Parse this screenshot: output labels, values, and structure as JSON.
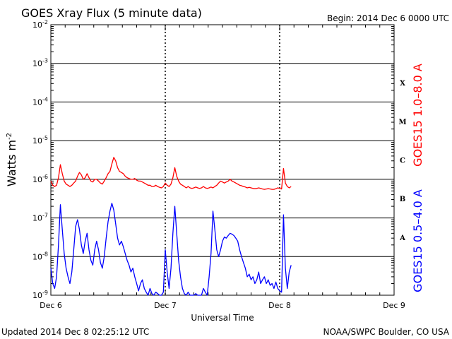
{
  "chart_data": {
    "type": "line",
    "title": "GOES Xray Flux (5 minute data)",
    "begin_label": "Begin:  2014 Dec 6 0000 UTC",
    "ylabel_main": "Watts m",
    "ylabel_sup": "-2",
    "xlabel": "Universal Time",
    "updated": "Updated 2014 Dec  8 02:25:12 UTC",
    "credit": "NOAA/SWPC Boulder, CO USA",
    "yscale": "log",
    "ylim": [
      1e-09,
      0.01
    ],
    "xlim": [
      0,
      72
    ],
    "x_unit": "hours since 2014 Dec 6 0000 UTC",
    "y_ticks": [
      {
        "v": 0.01,
        "base": "10",
        "exp": "-2"
      },
      {
        "v": 0.001,
        "base": "10",
        "exp": "-3"
      },
      {
        "v": 0.0001,
        "base": "10",
        "exp": "-4"
      },
      {
        "v": 1e-05,
        "base": "10",
        "exp": "-5"
      },
      {
        "v": 1e-06,
        "base": "10",
        "exp": "-6"
      },
      {
        "v": 1e-07,
        "base": "10",
        "exp": "-7"
      },
      {
        "v": 1e-08,
        "base": "10",
        "exp": "-8"
      },
      {
        "v": 1e-09,
        "base": "10",
        "exp": "-9"
      }
    ],
    "x_ticks": [
      {
        "v": 0,
        "label": "Dec 6"
      },
      {
        "v": 24,
        "label": "Dec 7"
      },
      {
        "v": 48,
        "label": "Dec 8"
      },
      {
        "v": 72,
        "label": "Dec 9"
      }
    ],
    "flare_classes": [
      {
        "label": "X",
        "v": 0.000316
      },
      {
        "label": "M",
        "v": 3.16e-05
      },
      {
        "label": "C",
        "v": 3.16e-06
      },
      {
        "label": "B",
        "v": 3.16e-07
      },
      {
        "label": "A",
        "v": 3.16e-08
      }
    ],
    "grid": "horizontal at each decade; dotted vertical at day boundaries",
    "series": [
      {
        "name": "GOES15 1.0–8.0 A",
        "color": "#ff0000",
        "x": [
          0,
          0.4,
          0.8,
          1.2,
          1.6,
          2.0,
          2.4,
          2.8,
          3.2,
          3.6,
          4.0,
          4.4,
          4.8,
          5.2,
          5.6,
          6.0,
          6.4,
          6.8,
          7.2,
          7.6,
          8.0,
          8.4,
          8.8,
          9.2,
          9.6,
          10.0,
          10.4,
          10.8,
          11.2,
          11.6,
          12.0,
          12.4,
          12.8,
          13.2,
          13.6,
          14.0,
          14.4,
          14.8,
          15.2,
          15.6,
          16.0,
          16.4,
          16.8,
          17.2,
          17.6,
          18.0,
          18.4,
          18.8,
          19.2,
          19.6,
          20.0,
          20.4,
          20.8,
          21.2,
          21.6,
          22.0,
          22.4,
          22.8,
          23.2,
          23.6,
          24.0,
          24.4,
          24.8,
          25.2,
          25.6,
          26.0,
          26.4,
          26.8,
          27.2,
          27.6,
          28.0,
          28.4,
          28.8,
          29.2,
          29.6,
          30.0,
          30.4,
          30.8,
          31.2,
          31.6,
          32.0,
          32.4,
          32.8,
          33.2,
          33.6,
          34.0,
          34.4,
          34.8,
          35.2,
          35.6,
          36.0,
          36.4,
          36.8,
          37.2,
          37.6,
          38.0,
          38.4,
          38.8,
          39.2,
          39.6,
          40.0,
          40.4,
          40.8,
          41.2,
          41.6,
          42.0,
          42.4,
          42.8,
          43.2,
          43.6,
          44.0,
          44.4,
          44.8,
          45.2,
          45.6,
          46.0,
          46.4,
          46.8,
          47.2,
          47.6,
          48.0,
          48.4,
          48.8,
          49.2,
          49.6,
          50.0,
          50.4
        ],
        "y": [
          9e-07,
          7e-07,
          6.5e-07,
          7e-07,
          1.1e-06,
          2.4e-06,
          1.4e-06,
          9e-07,
          7.5e-07,
          7e-07,
          6.5e-07,
          7e-07,
          8e-07,
          9e-07,
          1.2e-06,
          1.5e-06,
          1.3e-06,
          1e-06,
          1.1e-06,
          1.4e-06,
          1.1e-06,
          9e-07,
          8.5e-07,
          1e-06,
          1e-06,
          9e-07,
          8e-07,
          7.5e-07,
          9e-07,
          1.1e-06,
          1.4e-06,
          1.6e-06,
          2.5e-06,
          3.7e-06,
          3e-06,
          2e-06,
          1.6e-06,
          1.5e-06,
          1.4e-06,
          1.2e-06,
          1.1e-06,
          1.05e-06,
          1e-06,
          1e-06,
          1.05e-06,
          9.5e-07,
          9e-07,
          9e-07,
          8.5e-07,
          8e-07,
          7.5e-07,
          7e-07,
          7e-07,
          6.5e-07,
          6.5e-07,
          7e-07,
          6.5e-07,
          6.2e-07,
          6e-07,
          6.5e-07,
          8e-07,
          7e-07,
          6.5e-07,
          7.5e-07,
          1.1e-06,
          2e-06,
          1.2e-06,
          9e-07,
          7.5e-07,
          7e-07,
          6.5e-07,
          6e-07,
          6.5e-07,
          6e-07,
          5.8e-07,
          6e-07,
          6.3e-07,
          6e-07,
          5.8e-07,
          6e-07,
          6.5e-07,
          6e-07,
          5.8e-07,
          6e-07,
          6.3e-07,
          6e-07,
          6.5e-07,
          7e-07,
          8e-07,
          9e-07,
          8.5e-07,
          8e-07,
          8.5e-07,
          9e-07,
          1e-06,
          9e-07,
          8.5e-07,
          8e-07,
          7.5e-07,
          7e-07,
          6.8e-07,
          6.5e-07,
          6.3e-07,
          6e-07,
          6.2e-07,
          6e-07,
          5.8e-07,
          5.7e-07,
          5.8e-07,
          6e-07,
          5.8e-07,
          5.6e-07,
          5.5e-07,
          5.6e-07,
          5.7e-07,
          5.6e-07,
          5.5e-07,
          5.5e-07,
          5.7e-07,
          6e-07,
          5.8e-07,
          5.6e-07,
          1.9e-06,
          8e-07,
          6.5e-07,
          6e-07,
          6.5e-07
        ]
      },
      {
        "name": "GOES15 0.5–4.0 A",
        "color": "#0000ff",
        "x": [
          0,
          0.4,
          0.8,
          1.2,
          1.6,
          2.0,
          2.4,
          2.8,
          3.2,
          3.6,
          4.0,
          4.4,
          4.8,
          5.2,
          5.6,
          6.0,
          6.4,
          6.8,
          7.2,
          7.6,
          8.0,
          8.4,
          8.8,
          9.2,
          9.6,
          10.0,
          10.4,
          10.8,
          11.2,
          11.6,
          12.0,
          12.4,
          12.8,
          13.2,
          13.6,
          14.0,
          14.4,
          14.8,
          15.2,
          15.6,
          16.0,
          16.4,
          16.8,
          17.2,
          17.6,
          18.0,
          18.4,
          18.8,
          19.2,
          19.6,
          20.0,
          20.4,
          20.8,
          21.2,
          21.6,
          22.0,
          22.4,
          22.8,
          23.2,
          23.6,
          24.0,
          24.4,
          24.8,
          25.2,
          25.6,
          26.0,
          26.4,
          26.8,
          27.2,
          27.6,
          28.0,
          28.4,
          28.8,
          29.2,
          29.6,
          30.0,
          30.4,
          30.8,
          31.2,
          31.6,
          32.0,
          32.4,
          32.8,
          33.2,
          33.6,
          34.0,
          34.4,
          34.8,
          35.2,
          35.6,
          36.0,
          36.4,
          36.8,
          37.2,
          37.6,
          38.0,
          38.4,
          38.8,
          39.2,
          39.6,
          40.0,
          40.4,
          40.8,
          41.2,
          41.6,
          42.0,
          42.4,
          42.8,
          43.2,
          43.6,
          44.0,
          44.4,
          44.8,
          45.2,
          45.6,
          46.0,
          46.4,
          46.8,
          47.2,
          47.6,
          48.0,
          48.4,
          48.8,
          49.2,
          49.6,
          50.0,
          50.4
        ],
        "y": [
          5e-09,
          2e-09,
          1.5e-09,
          3e-09,
          2e-08,
          2.2e-07,
          5e-08,
          1.2e-08,
          5e-09,
          3e-09,
          2e-09,
          4e-09,
          1.5e-08,
          6e-08,
          9e-08,
          5e-08,
          2e-08,
          1.2e-08,
          2.5e-08,
          4e-08,
          1.5e-08,
          8e-09,
          6e-09,
          1.5e-08,
          2.5e-08,
          1.5e-08,
          7e-09,
          5e-09,
          1e-08,
          3e-08,
          8e-08,
          1.5e-07,
          2.4e-07,
          1.6e-07,
          7e-08,
          3e-08,
          2e-08,
          2.5e-08,
          1.8e-08,
          1.2e-08,
          8e-09,
          6e-09,
          4e-09,
          5e-09,
          3e-09,
          2e-09,
          1.3e-09,
          2e-09,
          2.5e-09,
          1.5e-09,
          1.2e-09,
          1e-09,
          1.5e-09,
          1.1e-09,
          1e-09,
          1.2e-09,
          1.1e-09,
          1e-09,
          1e-09,
          1.2e-09,
          1.5e-08,
          4e-09,
          1.5e-09,
          5e-09,
          4e-08,
          2e-07,
          4e-08,
          8e-09,
          3e-09,
          1.5e-09,
          1.1e-09,
          1e-09,
          1.2e-09,
          1e-09,
          1e-09,
          1e-09,
          1.1e-09,
          1e-09,
          1e-09,
          1e-09,
          1.5e-09,
          1.2e-09,
          1e-09,
          3e-09,
          1.2e-08,
          1.5e-07,
          5e-08,
          1.5e-08,
          1e-08,
          1.5e-08,
          2.5e-08,
          3.2e-08,
          3e-08,
          3.5e-08,
          4e-08,
          3.8e-08,
          3.5e-08,
          3e-08,
          2.5e-08,
          1.5e-08,
          1e-08,
          7e-09,
          5e-09,
          3e-09,
          3.5e-09,
          2.5e-09,
          3e-09,
          2e-09,
          2.5e-09,
          4e-09,
          2e-09,
          2.5e-09,
          3e-09,
          2e-09,
          2.5e-09,
          1.8e-09,
          2e-09,
          1.5e-09,
          2.2e-09,
          1.5e-09,
          1.3e-09,
          1.2e-09,
          1.2e-07,
          5e-09,
          1.5e-09,
          4e-09,
          6e-09
        ]
      }
    ]
  }
}
